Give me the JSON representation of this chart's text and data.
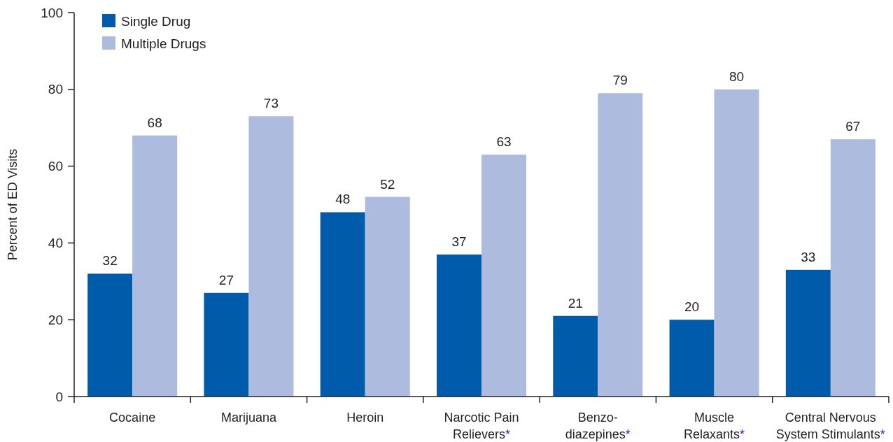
{
  "chart_data": {
    "type": "bar",
    "ylabel": "Percent of ED Visits",
    "categories": [
      "Cocaine",
      "Marijuana",
      "Heroin",
      "Narcotic Pain\nRelievers*",
      "Benzo-\ndiazepines*",
      "Muscle\nRelaxants*",
      "Central Nervous\nSystem Stimulants*"
    ],
    "series": [
      {
        "name": "Single Drug",
        "color": "#005bab",
        "values": [
          32,
          27,
          48,
          37,
          21,
          20,
          33
        ]
      },
      {
        "name": "Multiple Drugs",
        "color": "#adbbdf",
        "values": [
          68,
          73,
          52,
          63,
          79,
          80,
          67
        ]
      }
    ],
    "ylim": [
      0,
      100
    ],
    "yticks": [
      0,
      20,
      40,
      60,
      80,
      100
    ],
    "data_labels": true,
    "legend": "top left",
    "grid": false
  }
}
